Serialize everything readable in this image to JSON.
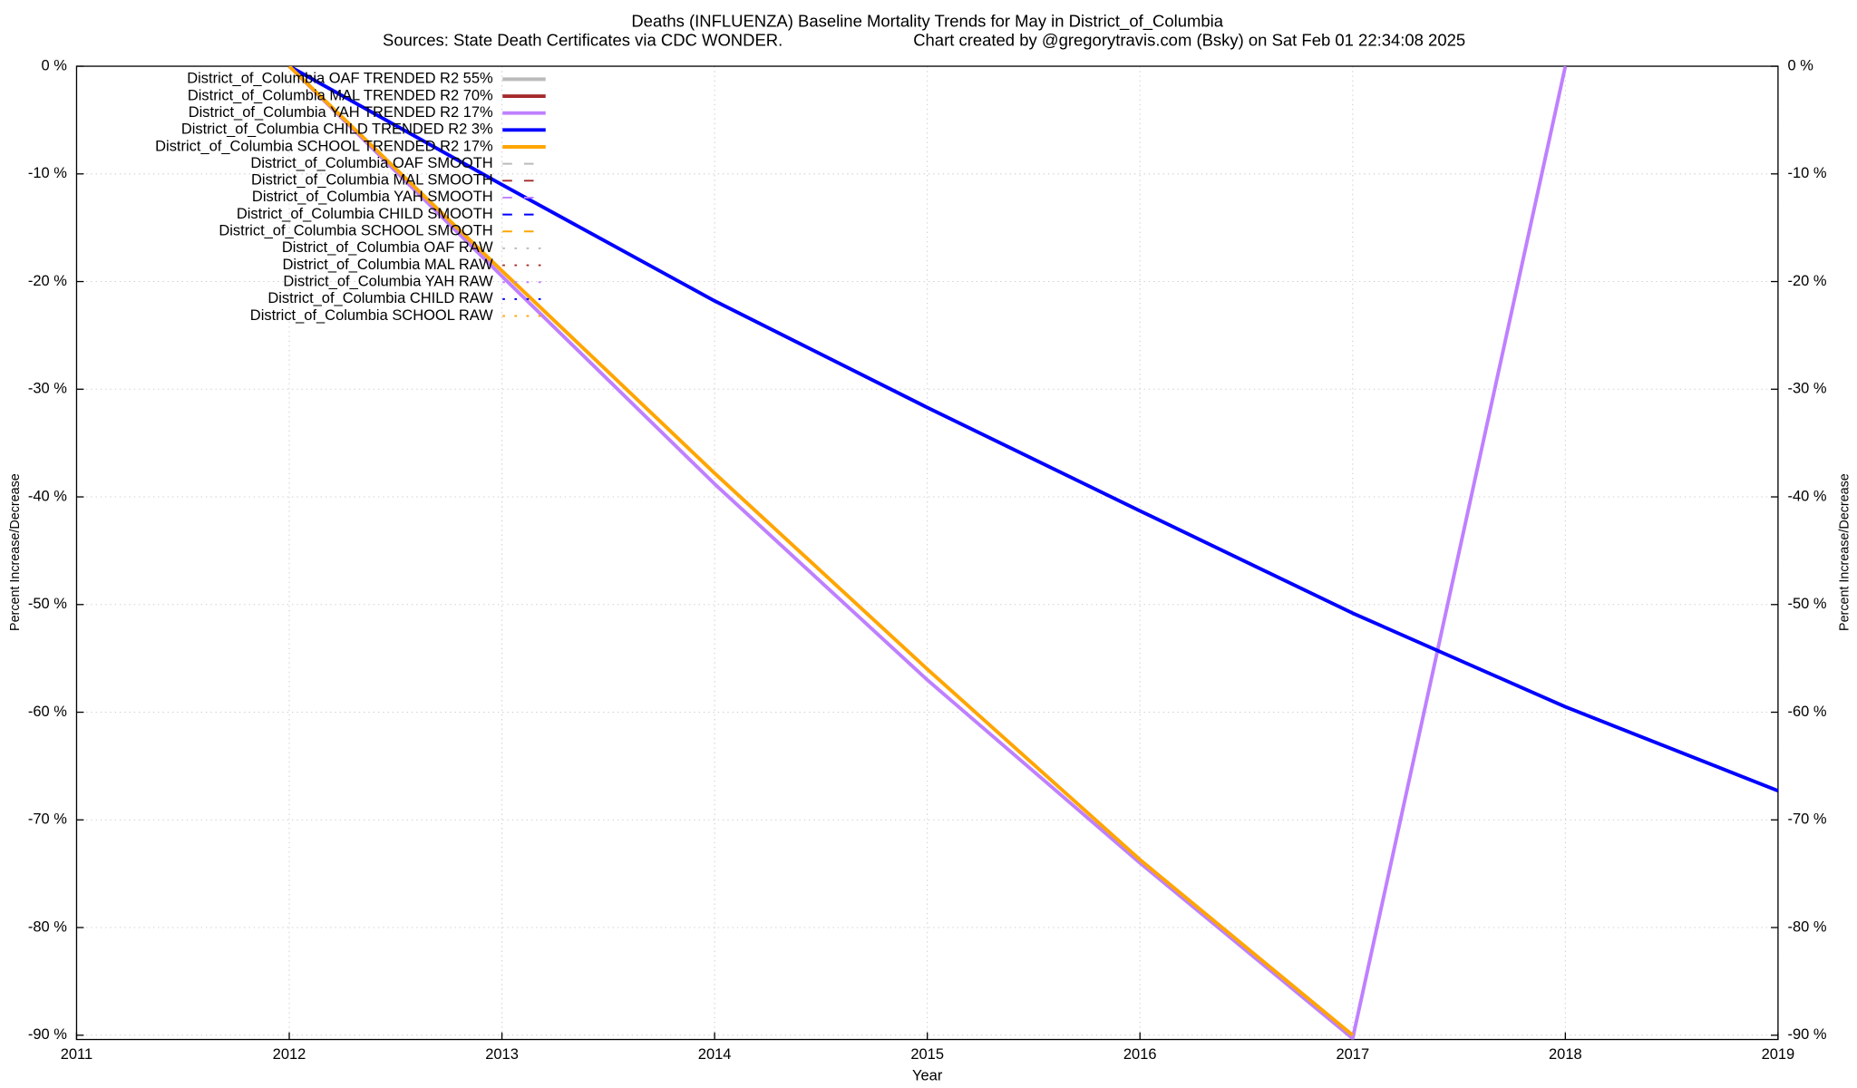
{
  "chart_data": {
    "type": "line",
    "title": "Deaths (INFLUENZA)  Baseline Mortality Trends for May in District_of_Columbia",
    "subtitle": "Sources: State Death Certificates via CDC WONDER.",
    "credit": "Chart created by @gregorytravis.com (Bsky) on Sat Feb 01 22:34:08 2025",
    "x_label": "Year",
    "y_label": "Percent Increase/Decrease",
    "y2_label": "Percent Increase/Decrease",
    "x": [
      2011,
      2012,
      2013,
      2014,
      2015,
      2016,
      2017,
      2018,
      2019
    ],
    "xlim": [
      2011,
      2019
    ],
    "xticks": [
      2011,
      2012,
      2013,
      2014,
      2015,
      2016,
      2017,
      2018,
      2019
    ],
    "ylim": [
      -90.4,
      0
    ],
    "yticks": [
      {
        "value": 0,
        "label": "0 %"
      },
      {
        "value": -10,
        "label": "-10 %"
      },
      {
        "value": -20,
        "label": "-20 %"
      },
      {
        "value": -30,
        "label": "-30 %"
      },
      {
        "value": -40,
        "label": "-40 %"
      },
      {
        "value": -50,
        "label": "-50 %"
      },
      {
        "value": -60,
        "label": "-60 %"
      },
      {
        "value": -70,
        "label": "-70 %"
      },
      {
        "value": -80,
        "label": "-80 %"
      },
      {
        "value": -90,
        "label": "-90 %"
      }
    ],
    "grid": true,
    "legend": "upper-left",
    "series": [
      {
        "name": "District_of_Columbia OAF TRENDED R2  55%",
        "color": "#bbbbbb",
        "dash": "solid",
        "values": [
          null,
          null,
          null,
          null,
          null,
          null,
          null,
          null,
          null
        ]
      },
      {
        "name": "District_of_Columbia MAL TRENDED R2  70%",
        "color": "#a52a2a",
        "dash": "solid",
        "values": [
          null,
          null,
          null,
          null,
          null,
          null,
          null,
          null,
          null
        ]
      },
      {
        "name": "District_of_Columbia YAH TRENDED R2  17%",
        "color": "#bf80ff",
        "dash": "solid",
        "values": [
          null,
          0,
          -19.5,
          -38.8,
          -57,
          -74,
          -90.3,
          0,
          null
        ]
      },
      {
        "name": "District_of_Columbia CHILD TRENDED R2   3%",
        "color": "#0000ff",
        "dash": "solid",
        "values": [
          null,
          0,
          -11,
          -21.8,
          -31.7,
          -41.3,
          -50.8,
          -59.5,
          -67.3
        ]
      },
      {
        "name": "District_of_Columbia SCHOOL TRENDED R2  17%",
        "color": "#ffa500",
        "dash": "solid",
        "values": [
          null,
          0,
          -19,
          -37.8,
          -56,
          -73.7,
          -90,
          null,
          null
        ]
      },
      {
        "name": "District_of_Columbia OAF SMOOTH",
        "color": "#bbbbbb",
        "dash": "dashed",
        "values": [
          null,
          null,
          null,
          null,
          null,
          null,
          null,
          null,
          null
        ]
      },
      {
        "name": "District_of_Columbia MAL SMOOTH",
        "color": "#a52a2a",
        "dash": "dashed",
        "values": [
          null,
          null,
          null,
          null,
          null,
          null,
          null,
          null,
          null
        ]
      },
      {
        "name": "District_of_Columbia YAH SMOOTH",
        "color": "#bf80ff",
        "dash": "dashed",
        "values": [
          null,
          null,
          null,
          null,
          null,
          null,
          null,
          null,
          null
        ]
      },
      {
        "name": "District_of_Columbia CHILD SMOOTH",
        "color": "#0000ff",
        "dash": "dashed",
        "values": [
          null,
          null,
          null,
          null,
          null,
          null,
          null,
          null,
          null
        ]
      },
      {
        "name": "District_of_Columbia SCHOOL SMOOTH",
        "color": "#ffa500",
        "dash": "dashed",
        "values": [
          null,
          null,
          null,
          null,
          null,
          null,
          null,
          null,
          null
        ]
      },
      {
        "name": "District_of_Columbia OAF RAW",
        "color": "#bbbbbb",
        "dash": "dotted",
        "values": [
          null,
          null,
          null,
          null,
          null,
          null,
          null,
          null,
          null
        ]
      },
      {
        "name": "District_of_Columbia MAL RAW",
        "color": "#a52a2a",
        "dash": "dotted",
        "values": [
          null,
          null,
          null,
          null,
          null,
          null,
          null,
          null,
          null
        ]
      },
      {
        "name": "District_of_Columbia YAH RAW",
        "color": "#bf80ff",
        "dash": "dotted",
        "values": [
          null,
          null,
          null,
          null,
          null,
          null,
          null,
          null,
          null
        ]
      },
      {
        "name": "District_of_Columbia CHILD RAW",
        "color": "#0000ff",
        "dash": "dotted",
        "values": [
          null,
          null,
          null,
          null,
          null,
          null,
          null,
          null,
          null
        ]
      },
      {
        "name": "District_of_Columbia SCHOOL RAW",
        "color": "#ffa500",
        "dash": "dotted",
        "values": [
          null,
          null,
          null,
          null,
          null,
          null,
          null,
          null,
          null
        ]
      }
    ]
  }
}
